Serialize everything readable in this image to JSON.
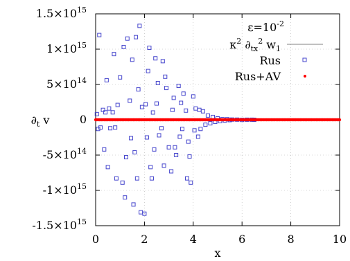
{
  "chart_data": {
    "type": "scatter",
    "title": "",
    "xlabel": "x",
    "ylabel": "∂t v",
    "xlim": [
      0,
      10
    ],
    "ylim": [
      -1500000000000000.0,
      1500000000000000.0
    ],
    "x_ticks": [
      0,
      2,
      4,
      6,
      8,
      10
    ],
    "x_tick_labels": [
      "0",
      "2",
      "4",
      "6",
      "8",
      "10"
    ],
    "y_ticks": [
      1500000000000000.0,
      1000000000000000.0,
      500000000000000.0,
      0,
      -500000000000000.0,
      -1000000000000000.0,
      -1500000000000000.0
    ],
    "y_tick_labels": [
      {
        "base": "1.5×10",
        "exp": "15"
      },
      {
        "base": "1×10",
        "exp": "15"
      },
      {
        "base": "5×10",
        "exp": "14"
      },
      {
        "base": "0",
        "exp": ""
      },
      {
        "base": "-5×10",
        "exp": "14"
      },
      {
        "base": "-1×10",
        "exp": "15"
      },
      {
        "base": "-1.5×10",
        "exp": "15"
      }
    ],
    "grid": true,
    "legend_position": "top-right",
    "annotation": {
      "base": "ε=10",
      "exp": "-2"
    },
    "series": [
      {
        "name": "κ2 ∂tx2 w1",
        "style": "line",
        "color": "#808080",
        "x": [
          0,
          10
        ],
        "y": [
          0,
          0
        ]
      },
      {
        "name": "Rus",
        "style": "open-square",
        "color": "#4444cc",
        "x": [
          0.05,
          0.1,
          0.15,
          0.2,
          0.3,
          0.35,
          0.4,
          0.45,
          0.5,
          0.55,
          0.6,
          0.7,
          0.75,
          0.8,
          0.85,
          0.9,
          1.0,
          1.1,
          1.15,
          1.2,
          1.25,
          1.3,
          1.4,
          1.45,
          1.5,
          1.55,
          1.6,
          1.65,
          1.7,
          1.75,
          1.8,
          1.85,
          1.9,
          2.0,
          2.05,
          2.1,
          2.15,
          2.2,
          2.25,
          2.3,
          2.35,
          2.4,
          2.45,
          2.5,
          2.55,
          2.6,
          2.7,
          2.75,
          2.8,
          2.85,
          2.9,
          3.0,
          3.1,
          3.15,
          3.2,
          3.25,
          3.3,
          3.4,
          3.45,
          3.5,
          3.55,
          3.6,
          3.7,
          3.75,
          3.8,
          3.85,
          3.9,
          4.0,
          4.05,
          4.1,
          4.2,
          4.25,
          4.3,
          4.4,
          4.5,
          4.6,
          4.7,
          4.8,
          4.9,
          5.0,
          5.1,
          5.2,
          5.3,
          5.4,
          5.5,
          5.6,
          5.8,
          6.0,
          6.2,
          6.4,
          6.5
        ],
        "y": [
          80000000000000.0,
          -130000000000000.0,
          1200000000000000.0,
          -110000000000000.0,
          140000000000000.0,
          -420000000000000.0,
          105000000000000.0,
          560000000000000.0,
          -670000000000000.0,
          160000000000000.0,
          -120000000000000.0,
          105000000000000.0,
          930000000000000.0,
          -110000000000000.0,
          -830000000000000.0,
          210000000000000.0,
          600000000000000.0,
          -890000000000000.0,
          1030000000000000.0,
          -1100000000000000.0,
          -530000000000000.0,
          1150000000000000.0,
          270000000000000.0,
          -260000000000000.0,
          850000000000000.0,
          -1200000000000000.0,
          -460000000000000.0,
          1170000000000000.0,
          -830000000000000.0,
          430000000000000.0,
          1330000000000000.0,
          -1310000000000000.0,
          180000000000000.0,
          -1330000000000000.0,
          220000000000000.0,
          -250000000000000.0,
          690000000000000.0,
          1020000000000000.0,
          -670000000000000.0,
          -830000000000000.0,
          103000000000000.0,
          -420000000000000.0,
          870000000000000.0,
          230000000000000.0,
          520000000000000.0,
          -220000000000000.0,
          -120000000000000.0,
          830000000000000.0,
          -650000000000000.0,
          610000000000000.0,
          450000000000000.0,
          -390000000000000.0,
          -730000000000000.0,
          140000000000000.0,
          310000000000000.0,
          -390000000000000.0,
          -500000000000000.0,
          480000000000000.0,
          -240000000000000.0,
          240000000000000.0,
          -130000000000000.0,
          370000000000000.0,
          130000000000000.0,
          -830000000000000.0,
          -310000000000000.0,
          -520000000000000.0,
          -890000000000000.0,
          330000000000000.0,
          -150000000000000.0,
          160000000000000.0,
          -240000000000000.0,
          140000000000000.0,
          -130000000000000.0,
          120000000000000.0,
          -70000000000000.0,
          60000000000000.0,
          -50000000000000.0,
          40000000000000.0,
          -30000000000000.0,
          20000000000000.0,
          -20000000000000.0,
          10000000000000.0,
          -10000000000000.0,
          8000000000000.0,
          -5000000000000.0,
          3000000000000.0,
          2000000000000.0,
          -2000000000000.0,
          1000000000000.0,
          1000000000000.0,
          0
        ]
      },
      {
        "name": "Rus+AV",
        "style": "dot",
        "color": "#ff0000",
        "x_range": [
          0,
          10
        ],
        "y_constant": 0
      }
    ]
  }
}
